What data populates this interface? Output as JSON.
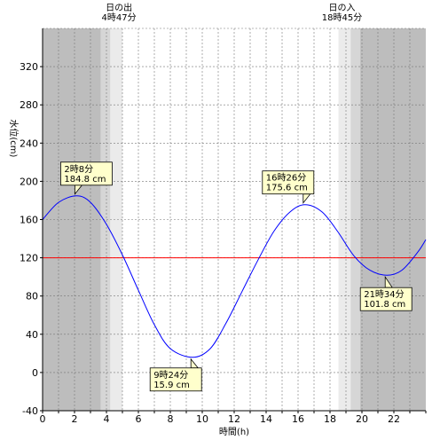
{
  "chart_data": {
    "type": "line",
    "xlabel": "時間(h)",
    "ylabel": "水位(cm)",
    "xlim": [
      0,
      24
    ],
    "ylim": [
      -40,
      360
    ],
    "x_ticks": [
      0,
      2,
      4,
      6,
      8,
      10,
      12,
      14,
      16,
      18,
      20,
      22
    ],
    "y_ticks": [
      -40,
      0,
      40,
      80,
      120,
      160,
      200,
      240,
      280,
      320
    ],
    "reference_line": {
      "y": 120,
      "color": "#ff0000"
    },
    "line_color": "#0000ff",
    "sunrise": {
      "title": "日の出",
      "time": "4時47分",
      "hour": 4.783
    },
    "sunset": {
      "title": "日の入",
      "time": "18時45分",
      "hour": 18.75
    },
    "series": [
      {
        "x": [
          0,
          1,
          2.133,
          3,
          4,
          5,
          6,
          7,
          8,
          9.4,
          10.5,
          11.5,
          12.5,
          13.5,
          14.5,
          15.5,
          16.433,
          17.5,
          18.5,
          19.5,
          20.5,
          21.567,
          22.5,
          23.5,
          24
        ],
        "values": [
          160,
          178,
          184.8,
          178,
          155,
          123,
          86,
          50,
          25,
          15.9,
          25,
          52,
          85,
          118,
          148,
          168,
          175.6,
          168,
          147,
          122,
          107,
          101.8,
          107,
          126,
          139
        ]
      }
    ],
    "annotations": [
      {
        "time": "2時8分",
        "value": "184.8 cm",
        "x": 2.133,
        "y": 184.8
      },
      {
        "time": "9時24分",
        "value": "15.9 cm",
        "x": 9.4,
        "y": 15.9
      },
      {
        "time": "16時26分",
        "value": "175.6 cm",
        "x": 16.433,
        "y": 175.6
      },
      {
        "time": "21時34分",
        "value": "101.8 cm",
        "x": 21.567,
        "y": 101.8
      }
    ]
  }
}
